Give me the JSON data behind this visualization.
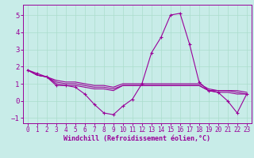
{
  "xlabel": "Windchill (Refroidissement éolien,°C)",
  "xlim": [
    -0.5,
    23.5
  ],
  "ylim": [
    -1.3,
    5.6
  ],
  "yticks": [
    -1,
    0,
    1,
    2,
    3,
    4,
    5
  ],
  "xticks": [
    0,
    1,
    2,
    3,
    4,
    5,
    6,
    7,
    8,
    9,
    10,
    11,
    12,
    13,
    14,
    15,
    16,
    17,
    18,
    19,
    20,
    21,
    22,
    23
  ],
  "bg_color": "#c8ece8",
  "line_color": "#990099",
  "grid_color": "#aaddcc",
  "lines": [
    {
      "x": [
        0,
        1,
        2,
        3,
        4,
        5,
        6,
        7,
        8,
        9,
        10,
        11,
        12,
        13,
        14,
        15,
        16,
        17,
        18,
        19,
        20,
        21,
        22,
        23
      ],
      "y": [
        1.8,
        1.6,
        1.4,
        0.9,
        0.9,
        0.8,
        0.4,
        -0.2,
        -0.7,
        -0.8,
        -0.3,
        0.1,
        1.0,
        2.8,
        3.7,
        5.0,
        5.1,
        3.3,
        1.1,
        0.6,
        0.5,
        0.0,
        -0.7,
        0.4
      ],
      "marker": "+"
    },
    {
      "x": [
        0,
        1,
        2,
        3,
        4,
        5,
        6,
        7,
        8,
        9,
        10,
        11,
        12,
        13,
        14,
        15,
        16,
        17,
        18,
        19,
        20,
        21,
        22,
        23
      ],
      "y": [
        1.8,
        1.5,
        1.4,
        1.2,
        1.1,
        1.1,
        1.0,
        0.9,
        0.9,
        0.8,
        1.0,
        1.0,
        1.0,
        1.0,
        1.0,
        1.0,
        1.0,
        1.0,
        1.0,
        0.7,
        0.6,
        0.6,
        0.6,
        0.5
      ],
      "marker": null
    },
    {
      "x": [
        0,
        1,
        2,
        3,
        4,
        5,
        6,
        7,
        8,
        9,
        10,
        11,
        12,
        13,
        14,
        15,
        16,
        17,
        18,
        19,
        20,
        21,
        22,
        23
      ],
      "y": [
        1.8,
        1.5,
        1.4,
        1.1,
        1.0,
        1.0,
        0.9,
        0.8,
        0.8,
        0.7,
        0.9,
        0.9,
        0.9,
        0.9,
        0.9,
        0.9,
        0.9,
        0.9,
        0.9,
        0.6,
        0.6,
        0.6,
        0.5,
        0.4
      ],
      "marker": null
    },
    {
      "x": [
        0,
        1,
        2,
        3,
        4,
        5,
        6,
        7,
        8,
        9,
        10,
        11,
        12,
        13,
        14,
        15,
        16,
        17,
        18,
        19,
        20,
        21,
        22,
        23
      ],
      "y": [
        1.8,
        1.5,
        1.4,
        1.0,
        0.9,
        0.9,
        0.8,
        0.7,
        0.7,
        0.6,
        0.9,
        0.9,
        0.9,
        0.9,
        0.9,
        0.9,
        0.9,
        0.9,
        0.9,
        0.6,
        0.5,
        0.5,
        0.4,
        0.4
      ],
      "marker": null
    }
  ]
}
